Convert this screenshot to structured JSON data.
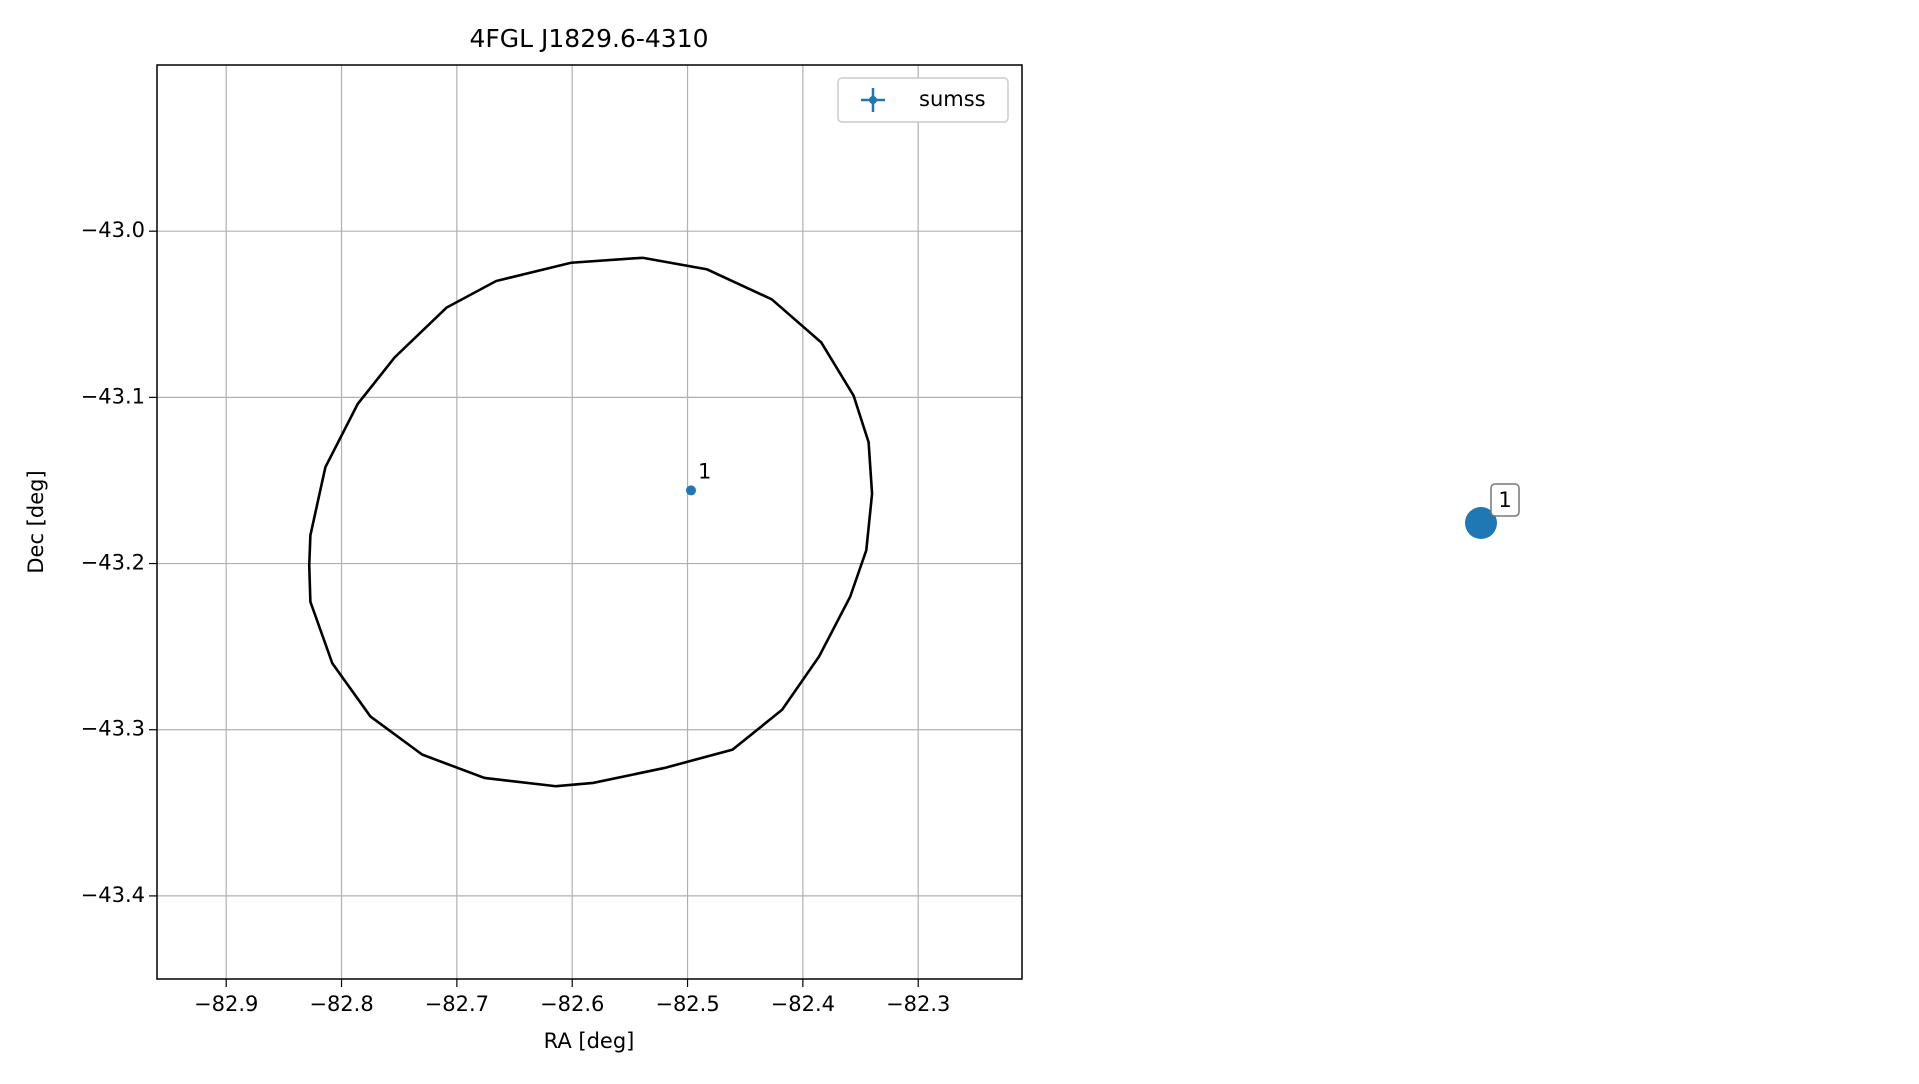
{
  "chart_data": {
    "type": "scatter",
    "title": "4FGL J1829.6-4310",
    "x_label": "RA [deg]",
    "y_label": "Dec [deg]",
    "xlim": [
      -82.96,
      -82.21
    ],
    "ylim": [
      -43.45,
      -42.9
    ],
    "xticks": [
      {
        "value": -82.9,
        "label": "−82.9"
      },
      {
        "value": -82.8,
        "label": "−82.8"
      },
      {
        "value": -82.7,
        "label": "−82.7"
      },
      {
        "value": -82.6,
        "label": "−82.6"
      },
      {
        "value": -82.5,
        "label": "−82.5"
      },
      {
        "value": -82.4,
        "label": "−82.4"
      },
      {
        "value": -82.3,
        "label": "−82.3"
      }
    ],
    "yticks": [
      {
        "value": -43.0,
        "label": "−43.0"
      },
      {
        "value": -43.1,
        "label": "−43.1"
      },
      {
        "value": -43.2,
        "label": "−43.2"
      },
      {
        "value": -43.3,
        "label": "−43.3"
      },
      {
        "value": -43.4,
        "label": "−43.4"
      }
    ],
    "grid": true,
    "legend": "upper right",
    "series": [
      {
        "name": "sumss",
        "color": "#1f77b4",
        "x": [
          -82.497
        ],
        "y": [
          -43.156
        ],
        "labels": [
          "1"
        ]
      }
    ],
    "ellipse": {
      "color": "#000000",
      "x": [
        -82.539,
        -82.483,
        -82.427,
        -82.384,
        -82.356,
        -82.343,
        -82.34,
        -82.345,
        -82.359,
        -82.386,
        -82.418,
        -82.461,
        -82.52,
        -82.582,
        -82.614,
        -82.676,
        -82.73,
        -82.775,
        -82.808,
        -82.827,
        -82.828,
        -82.827,
        -82.814,
        -82.786,
        -82.754,
        -82.709,
        -82.666,
        -82.601,
        -82.539
      ],
      "y": [
        -43.016,
        -43.023,
        -43.041,
        -43.067,
        -43.099,
        -43.127,
        -43.158,
        -43.192,
        -43.22,
        -43.256,
        -43.288,
        -43.312,
        -43.323,
        -43.332,
        -43.334,
        -43.329,
        -43.315,
        -43.292,
        -43.26,
        -43.223,
        -43.201,
        -43.183,
        -43.142,
        -43.104,
        -43.076,
        -43.046,
        -43.03,
        -43.019,
        -43.016
      ]
    }
  }
}
